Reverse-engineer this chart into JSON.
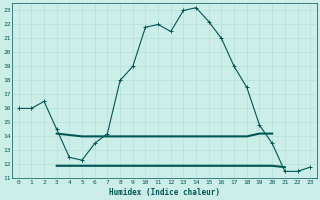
{
  "xlabel": "Humidex (Indice chaleur)",
  "bg_color": "#cceee8",
  "grid_color": "#b0ddd8",
  "line_color": "#005555",
  "xlim": [
    -0.5,
    23.5
  ],
  "ylim": [
    11,
    23.5
  ],
  "x_ticks": [
    0,
    1,
    2,
    3,
    4,
    5,
    6,
    7,
    8,
    9,
    10,
    11,
    12,
    13,
    14,
    15,
    16,
    17,
    18,
    19,
    20,
    21,
    22,
    23
  ],
  "y_ticks": [
    11,
    12,
    13,
    14,
    15,
    16,
    17,
    18,
    19,
    20,
    21,
    22,
    23
  ],
  "curve1_x": [
    0,
    1,
    2,
    3,
    4,
    5,
    6,
    7,
    8,
    9,
    10,
    11,
    12,
    13,
    14,
    15,
    16,
    17,
    18,
    19,
    20,
    21,
    22,
    23
  ],
  "curve1_y": [
    16,
    16,
    16.5,
    14.5,
    12.5,
    12.3,
    13.5,
    14.2,
    18.0,
    19.0,
    21.8,
    22.0,
    21.5,
    23.0,
    23.2,
    22.2,
    21.0,
    19.0,
    17.5,
    14.8,
    13.5,
    11.5,
    11.5,
    11.8
  ],
  "curve2_x": [
    3,
    4,
    5,
    6,
    7,
    8,
    9,
    10,
    11,
    12,
    13,
    14,
    15,
    16,
    17,
    18,
    19,
    20
  ],
  "curve2_y": [
    14.2,
    14.1,
    14.0,
    14.0,
    14.0,
    14.0,
    14.0,
    14.0,
    14.0,
    14.0,
    14.0,
    14.0,
    14.0,
    14.0,
    14.0,
    14.0,
    14.2,
    14.2
  ],
  "curve3_x": [
    3,
    4,
    5,
    6,
    7,
    8,
    9,
    10,
    11,
    12,
    13,
    14,
    15,
    16,
    17,
    18,
    19,
    20,
    21
  ],
  "curve3_y": [
    11.9,
    11.9,
    11.9,
    11.9,
    11.9,
    11.9,
    11.9,
    11.9,
    11.9,
    11.9,
    11.9,
    11.9,
    11.9,
    11.9,
    11.9,
    11.9,
    11.9,
    11.9,
    11.8
  ]
}
